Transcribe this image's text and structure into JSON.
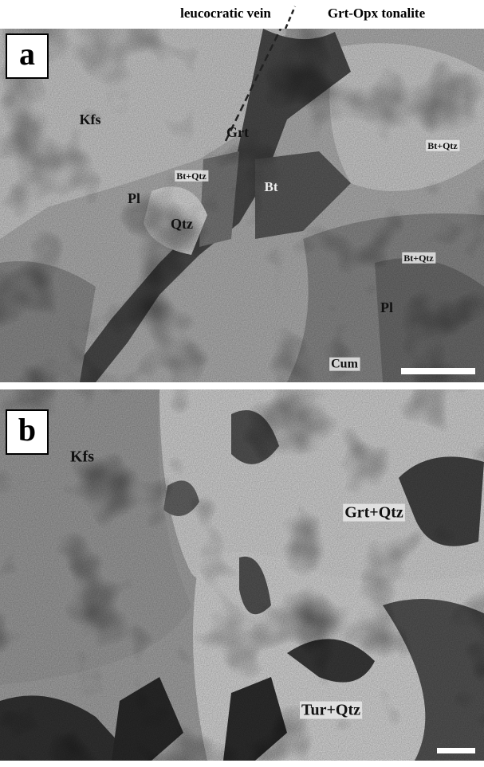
{
  "header": {
    "left": "leucocratic vein",
    "right": "Grt-Opx tonalite"
  },
  "panels": [
    {
      "label": "a",
      "annotations": [
        "Kfs",
        "Grt",
        "Bt+Qtz",
        "Pl",
        "Qtz",
        "Bt",
        "Bt+Qtz",
        "Bt+Qtz",
        "Pl",
        "Cum"
      ]
    },
    {
      "label": "b",
      "annotations": [
        "Kfs",
        "Grt+Qtz",
        "Tur+Qtz"
      ]
    }
  ]
}
